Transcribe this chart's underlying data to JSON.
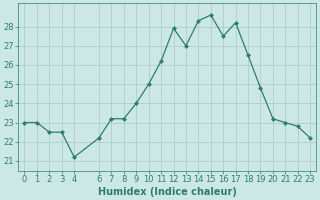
{
  "x": [
    0,
    1,
    2,
    3,
    4,
    6,
    7,
    8,
    9,
    10,
    11,
    12,
    13,
    14,
    15,
    16,
    17,
    18,
    19,
    20,
    21,
    22,
    23
  ],
  "y": [
    23.0,
    23.0,
    22.5,
    22.5,
    21.2,
    22.2,
    23.2,
    23.2,
    24.0,
    25.0,
    26.2,
    27.9,
    27.0,
    28.3,
    28.6,
    27.5,
    28.2,
    26.5,
    24.8,
    23.2,
    23.0,
    22.8,
    22.2
  ],
  "xlabel": "Humidex (Indice chaleur)",
  "xlim": [
    -0.5,
    23.5
  ],
  "ylim": [
    20.5,
    29.2
  ],
  "yticks": [
    21,
    22,
    23,
    24,
    25,
    26,
    27,
    28
  ],
  "xtick_positions": [
    0,
    1,
    2,
    3,
    4,
    6,
    7,
    8,
    9,
    10,
    11,
    12,
    13,
    14,
    15,
    16,
    17,
    18,
    19,
    20,
    21,
    22,
    23
  ],
  "xtick_labels": [
    "0",
    "1",
    "2",
    "3",
    "4",
    "6",
    "7",
    "8",
    "9",
    "10",
    "11",
    "12",
    "13",
    "14",
    "15",
    "16",
    "17",
    "18",
    "19",
    "20",
    "21",
    "22",
    "23"
  ],
  "line_color": "#2e7d6e",
  "marker": "D",
  "marker_size": 2,
  "bg_color": "#cce8e4",
  "grid_color": "#b0ccc8",
  "label_fontsize": 7,
  "tick_fontsize": 6
}
